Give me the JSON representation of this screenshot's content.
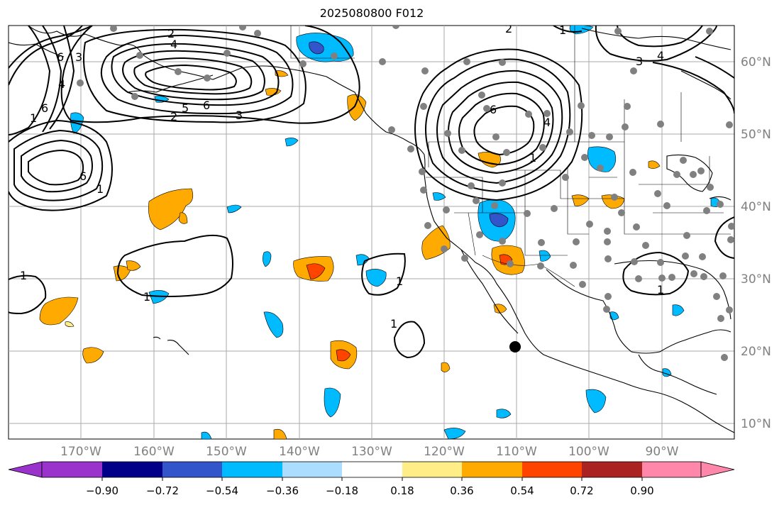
{
  "title": "2025080800 F012",
  "lon_labels": [
    "170°W",
    "160°W",
    "150°W",
    "140°W",
    "130°W",
    "120°W",
    "110°W",
    "100°W",
    "90°W"
  ],
  "lat_labels": [
    "60°N",
    "50°N",
    "40°N",
    "30°N",
    "20°N",
    "10°N"
  ],
  "colorbar": {
    "ticks": [
      "−0.90",
      "−0.72",
      "−0.54",
      "−0.36",
      "−0.18",
      "0.18",
      "0.36",
      "0.54",
      "0.72",
      "0.90"
    ],
    "under_color": "#9933cc",
    "over_color": "#ff88aa",
    "colors": [
      "#000088",
      "#3355cc",
      "#00bbff",
      "#aaddff",
      "#ffffff",
      "#ffee88",
      "#ffaa00",
      "#ff4400",
      "#aa2222"
    ]
  },
  "contour_labels": [
    "2",
    "4",
    "6",
    "3",
    "4",
    "6",
    "1",
    "5",
    "6",
    "3",
    "2",
    "1",
    "3",
    "4",
    "6",
    "6",
    "1",
    "1",
    "1",
    "1",
    "1",
    "4",
    "2",
    "1",
    "1"
  ],
  "colors": {
    "gridline": "#aaaaaa",
    "coast": "#000000",
    "station": "#808080",
    "lon_lat_label": "#808080"
  }
}
